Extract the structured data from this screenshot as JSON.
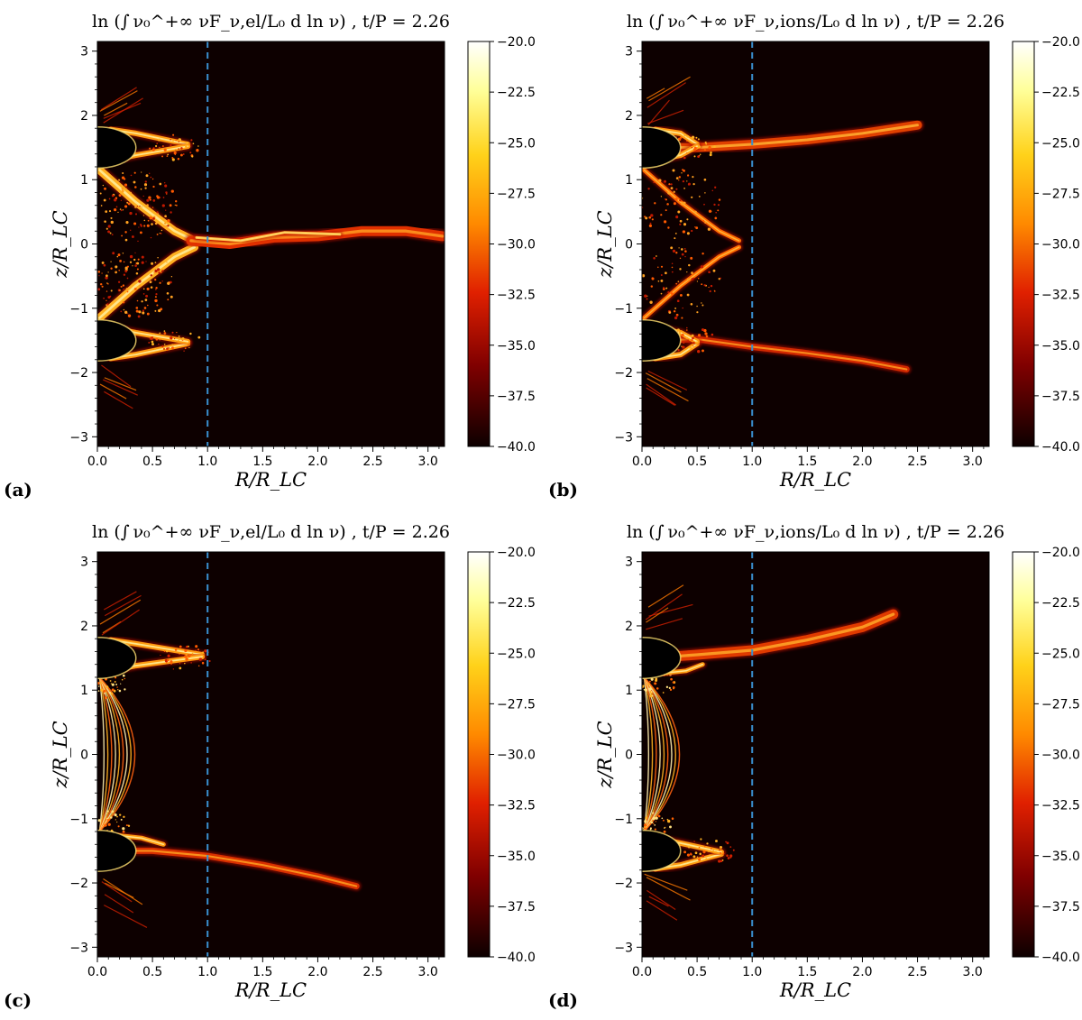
{
  "figure": {
    "panels": [
      {
        "id": "a",
        "letter": "(a)",
        "title": "ln (∫ ν₀^+∞ νF_ν,el/L₀ d ln ν) ,  t/P = 2.26",
        "species": "el"
      },
      {
        "id": "b",
        "letter": "(b)",
        "title": "ln (∫ ν₀^+∞ νF_ν,ions/L₀ d ln ν) ,  t/P = 2.26",
        "species": "ions"
      },
      {
        "id": "c",
        "letter": "(c)",
        "title": "ln (∫ ν₀^+∞ νF_ν,el/L₀ d ln ν) ,  t/P = 2.26",
        "species": "el"
      },
      {
        "id": "d",
        "letter": "(d)",
        "title": "ln (∫ ν₀^+∞ νF_ν,ions/L₀ d ln ν) ,  t/P = 2.26",
        "species": "ions"
      }
    ]
  },
  "chart_data": [
    {
      "type": "heatmap",
      "panel": "a",
      "title": "ln (∫ ν₀^+∞ νF_ν,el/L₀ d ln ν) , t/P = 2.26",
      "xlabel": "R/R_LC",
      "ylabel": "z/R_LC",
      "xlim": [
        0,
        3.15
      ],
      "ylim": [
        -3.15,
        3.15
      ],
      "xticks": [
        "0.0",
        "0.5",
        "1.0",
        "1.5",
        "2.0",
        "2.5",
        "3.0"
      ],
      "yticks": [
        "3",
        "2",
        "1",
        "0",
        "-1",
        "-2",
        "-3"
      ],
      "colorbar": {
        "min": -40.0,
        "max": -20.0,
        "colormap": "afmhot",
        "ticks": [
          "-20.0",
          "-22.5",
          "-25.0",
          "-27.5",
          "-30.0",
          "-32.5",
          "-35.0",
          "-37.5",
          "-40.0"
        ]
      },
      "annotations": [
        {
          "type": "vertical-dashed-line",
          "x": 1.0,
          "color": "#3a8fd0"
        }
      ],
      "features": [
        {
          "name": "upper polar cap arc",
          "R": [
            0.1,
            0.82
          ],
          "z": [
            1.2,
            2.0
          ]
        },
        {
          "name": "lower polar cap arc",
          "R": [
            0.1,
            0.82
          ],
          "z": [
            -1.2,
            -2.0
          ]
        },
        {
          "name": "equatorial current sheet",
          "R": [
            0.5,
            3.13
          ],
          "z": [
            0.0,
            0.3
          ]
        },
        {
          "name": "separatrix Y-point branches",
          "R": [
            0.0,
            1.0
          ],
          "z": [
            -1.2,
            1.2
          ]
        }
      ]
    },
    {
      "type": "heatmap",
      "panel": "b",
      "title": "ln (∫ ν₀^+∞ νF_ν,ions/L₀ d ln ν) , t/P = 2.26",
      "xlabel": "R/R_LC",
      "ylabel": "z/R_LC",
      "xlim": [
        0,
        3.15
      ],
      "ylim": [
        -3.15,
        3.15
      ],
      "xticks": [
        "0.0",
        "0.5",
        "1.0",
        "1.5",
        "2.0",
        "2.5",
        "3.0"
      ],
      "yticks": [
        "3",
        "2",
        "1",
        "0",
        "-1",
        "-2",
        "-3"
      ],
      "colorbar": {
        "min": -40.0,
        "max": -20.0,
        "colormap": "afmhot",
        "ticks": [
          "-20.0",
          "-22.5",
          "-25.0",
          "-27.5",
          "-30.0",
          "-32.5",
          "-35.0",
          "-37.5",
          "-40.0"
        ]
      },
      "annotations": [
        {
          "type": "vertical-dashed-line",
          "x": 1.0,
          "color": "#3a8fd0"
        }
      ],
      "features": [
        {
          "name": "upper ion stream",
          "R": [
            0.1,
            2.5
          ],
          "z": [
            1.3,
            1.9
          ]
        },
        {
          "name": "lower ion stream",
          "R": [
            0.1,
            2.4
          ],
          "z": [
            -1.3,
            -2.0
          ]
        },
        {
          "name": "separatrix Y-point branches",
          "R": [
            0.0,
            0.95
          ],
          "z": [
            -1.2,
            1.2
          ]
        }
      ]
    },
    {
      "type": "heatmap",
      "panel": "c",
      "title": "ln (∫ ν₀^+∞ νF_ν,el/L₀ d ln ν) , t/P = 2.26",
      "xlabel": "R/R_LC",
      "ylabel": "z/R_LC",
      "xlim": [
        0,
        3.15
      ],
      "ylim": [
        -3.15,
        3.15
      ],
      "xticks": [
        "0.0",
        "0.5",
        "1.0",
        "1.5",
        "2.0",
        "2.5",
        "3.0"
      ],
      "yticks": [
        "3",
        "2",
        "1",
        "0",
        "-1",
        "-2",
        "-3"
      ],
      "colorbar": {
        "min": -40.0,
        "max": -20.0,
        "colormap": "afmhot",
        "ticks": [
          "-20.0",
          "-22.5",
          "-25.0",
          "-27.5",
          "-30.0",
          "-32.5",
          "-35.0",
          "-37.5",
          "-40.0"
        ]
      },
      "annotations": [
        {
          "type": "vertical-dashed-line",
          "x": 1.0,
          "color": "#3a8fd0"
        }
      ],
      "features": [
        {
          "name": "upper polar cap arc",
          "R": [
            0.1,
            0.95
          ],
          "z": [
            1.2,
            2.0
          ]
        },
        {
          "name": "lower electron stream",
          "R": [
            0.1,
            2.4
          ],
          "z": [
            -1.3,
            -2.1
          ]
        },
        {
          "name": "closed field line arcs",
          "R": [
            0.0,
            0.35
          ],
          "z": [
            -1.2,
            1.2
          ]
        }
      ]
    },
    {
      "type": "heatmap",
      "panel": "d",
      "title": "ln (∫ ν₀^+∞ νF_ν,ions/L₀ d ln ν) , t/P = 2.26",
      "xlabel": "R/R_LC",
      "ylabel": "z/R_LC",
      "xlim": [
        0,
        3.15
      ],
      "ylim": [
        -3.15,
        3.15
      ],
      "xticks": [
        "0.0",
        "0.5",
        "1.0",
        "1.5",
        "2.0",
        "2.5",
        "3.0"
      ],
      "yticks": [
        "3",
        "2",
        "1",
        "0",
        "-1",
        "-2",
        "-3"
      ],
      "colorbar": {
        "min": -40.0,
        "max": -20.0,
        "colormap": "afmhot",
        "ticks": [
          "-20.0",
          "-22.5",
          "-25.0",
          "-27.5",
          "-30.0",
          "-32.5",
          "-35.0",
          "-37.5",
          "-40.0"
        ]
      },
      "annotations": [
        {
          "type": "vertical-dashed-line",
          "x": 1.0,
          "color": "#3a8fd0"
        }
      ],
      "features": [
        {
          "name": "upper ion stream",
          "R": [
            0.1,
            2.3
          ],
          "z": [
            1.3,
            2.2
          ]
        },
        {
          "name": "lower polar cap arc",
          "R": [
            0.1,
            0.75
          ],
          "z": [
            -1.2,
            -2.0
          ]
        },
        {
          "name": "closed field line arcs",
          "R": [
            0.0,
            0.35
          ],
          "z": [
            -1.2,
            1.2
          ]
        }
      ]
    }
  ],
  "colors": {
    "background": "#0d0000",
    "dashed_line": "#3a8fd0"
  }
}
